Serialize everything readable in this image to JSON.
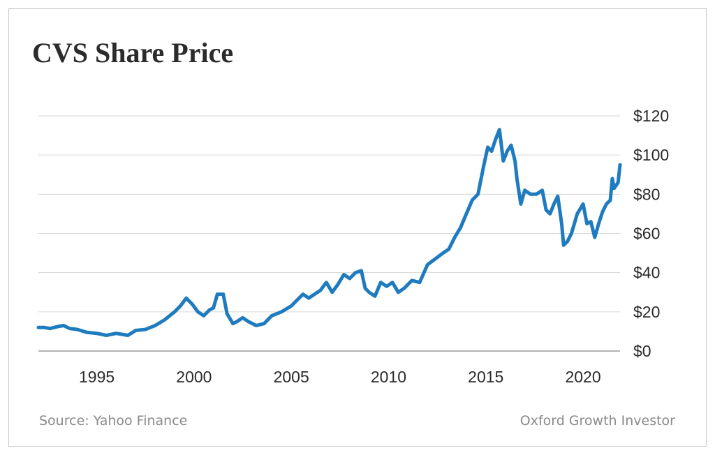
{
  "chart_data": {
    "type": "line",
    "title": "CVS Share Price",
    "xlabel": "",
    "ylabel": "",
    "xlim": [
      1992,
      2021.9
    ],
    "ylim": [
      0,
      120
    ],
    "x_ticks": [
      1995,
      2000,
      2005,
      2010,
      2015,
      2020
    ],
    "y_ticks": [
      0,
      20,
      40,
      60,
      80,
      100,
      120
    ],
    "y_tick_labels": [
      "$0",
      "$20",
      "$40",
      "$60",
      "$80",
      "$100",
      "$120"
    ],
    "y_axis_position": "right",
    "grid": true,
    "line_color": "#1f7bbf",
    "series": [
      {
        "x": [
          1992.0,
          1992.3,
          1992.6,
          1993.0,
          1993.3,
          1993.6,
          1994.0,
          1994.5,
          1995.0,
          1995.5,
          1996.0,
          1996.3,
          1996.6,
          1997.0,
          1997.5,
          1998.0,
          1998.5,
          1999.0,
          1999.3,
          1999.6,
          1999.9,
          2000.2,
          2000.5,
          2000.8,
          2001.0,
          2001.2,
          2001.5,
          2001.7,
          2002.0,
          2002.2,
          2002.5,
          2002.8,
          2003.2,
          2003.6,
          2004.0,
          2004.5,
          2005.0,
          2005.3,
          2005.6,
          2005.9,
          2006.2,
          2006.5,
          2006.8,
          2007.1,
          2007.4,
          2007.7,
          2008.0,
          2008.3,
          2008.6,
          2008.8,
          2009.0,
          2009.3,
          2009.6,
          2009.9,
          2010.2,
          2010.5,
          2010.8,
          2011.2,
          2011.6,
          2012.0,
          2012.4,
          2012.8,
          2013.1,
          2013.4,
          2013.7,
          2014.0,
          2014.3,
          2014.6,
          2014.9,
          2015.1,
          2015.3,
          2015.5,
          2015.7,
          2015.9,
          2016.1,
          2016.3,
          2016.5,
          2016.6,
          2016.8,
          2017.0,
          2017.3,
          2017.6,
          2017.9,
          2018.1,
          2018.3,
          2018.5,
          2018.7,
          2018.9,
          2019.0,
          2019.2,
          2019.4,
          2019.7,
          2020.0,
          2020.2,
          2020.4,
          2020.6,
          2020.8,
          2021.0,
          2021.2,
          2021.4,
          2021.5,
          2021.6,
          2021.8,
          2021.9
        ],
        "values": [
          12,
          12,
          11.5,
          12.5,
          13,
          11.5,
          11,
          9.5,
          9,
          8,
          9,
          8.5,
          8,
          10.5,
          11,
          13,
          16,
          20,
          23,
          27,
          24,
          20,
          18,
          21,
          22,
          29,
          29,
          19,
          14,
          15,
          17,
          15,
          13,
          14,
          18,
          20,
          23,
          26,
          29,
          27,
          29,
          31,
          35,
          30,
          34,
          39,
          37,
          40,
          41,
          32,
          30,
          28,
          35,
          33,
          35,
          30,
          32,
          36,
          35,
          44,
          47,
          50,
          52,
          58,
          63,
          70,
          77,
          80,
          95,
          104,
          102,
          108,
          113,
          97,
          102,
          105,
          97,
          88,
          75,
          82,
          80,
          80,
          82,
          72,
          70,
          75,
          79,
          65,
          54,
          56,
          60,
          70,
          75,
          65,
          66,
          58,
          65,
          71,
          75,
          77,
          88,
          83,
          86,
          95
        ]
      }
    ]
  },
  "footer": {
    "source": "Source: Yahoo Finance",
    "brand": "Oxford Growth Investor"
  }
}
